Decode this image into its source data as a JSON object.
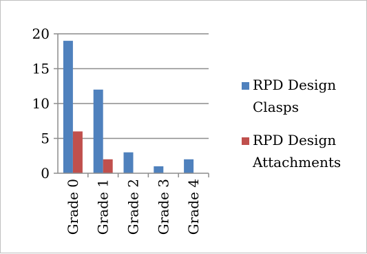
{
  "chart_data": {
    "type": "bar",
    "title": "",
    "xlabel": "",
    "ylabel": "",
    "categories": [
      "Grade 0",
      "Grade 1",
      "Grade 2",
      "Grade 3",
      "Grade 4"
    ],
    "series": [
      {
        "name": "RPD Design Clasps",
        "legend_lines": [
          "RPD Design",
          "Clasps"
        ],
        "values": [
          19,
          12,
          3,
          1,
          2
        ],
        "color": "#4f81bd"
      },
      {
        "name": "RPD Design Attachments",
        "legend_lines": [
          "RPD Design",
          "Attachments"
        ],
        "values": [
          6,
          2,
          0,
          0,
          0
        ],
        "color": "#c0504d"
      }
    ],
    "ylim": [
      0,
      20
    ],
    "yticks": [
      "0",
      "5",
      "10",
      "15",
      "20"
    ],
    "grid": true,
    "legend_position": "right"
  }
}
